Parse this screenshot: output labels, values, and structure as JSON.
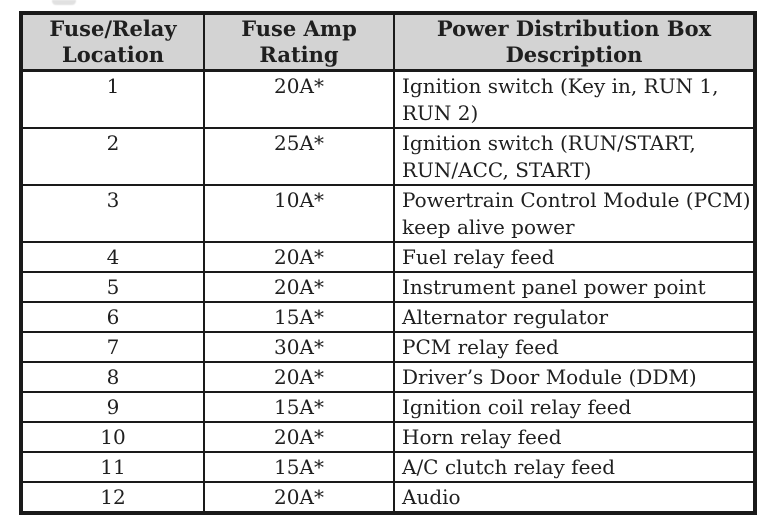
{
  "table": {
    "headers": [
      {
        "line1": "Fuse/Relay",
        "line2": "Location"
      },
      {
        "line1": "Fuse Amp",
        "line2": "Rating"
      },
      {
        "line1": "Power Distribution Box",
        "line2": "Description"
      }
    ],
    "rows": [
      {
        "location": "1",
        "rating": "20A*",
        "description": "Ignition switch (Key in, RUN 1, RUN 2)"
      },
      {
        "location": "2",
        "rating": "25A*",
        "description": "Ignition switch (RUN/START, RUN/ACC, START)"
      },
      {
        "location": "3",
        "rating": "10A*",
        "description": "Powertrain Control Module (PCM) keep alive power"
      },
      {
        "location": "4",
        "rating": "20A*",
        "description": "Fuel relay feed"
      },
      {
        "location": "5",
        "rating": "20A*",
        "description": "Instrument panel power point"
      },
      {
        "location": "6",
        "rating": "15A*",
        "description": "Alternator regulator"
      },
      {
        "location": "7",
        "rating": "30A*",
        "description": "PCM relay feed"
      },
      {
        "location": "8",
        "rating": "20A*",
        "description": "Driver’s Door Module (DDM)"
      },
      {
        "location": "9",
        "rating": "15A*",
        "description": "Ignition coil relay feed"
      },
      {
        "location": "10",
        "rating": "20A*",
        "description": "Horn relay feed"
      },
      {
        "location": "11",
        "rating": "15A*",
        "description": "A/C clutch relay feed"
      },
      {
        "location": "12",
        "rating": "20A*",
        "description": "Audio"
      }
    ]
  },
  "colors": {
    "page_bg": "#ffffff",
    "header_bg": "#d3d3d3",
    "border": "#1a1a1a",
    "text": "#1f1f1f"
  }
}
